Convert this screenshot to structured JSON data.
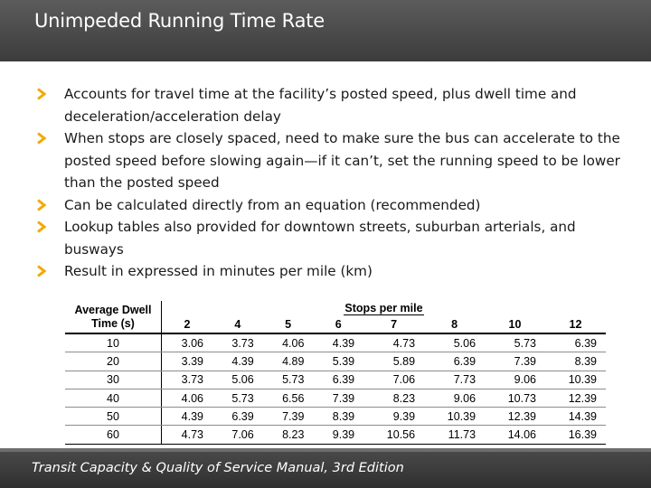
{
  "header": {
    "title": "Unimpeded Running Time Rate"
  },
  "bullets": [
    "Accounts for travel time at the facility’s posted speed, plus dwell time and deceleration/acceleration delay",
    "When stops are closely spaced, need to make sure the bus can accelerate to the posted speed before slowing again—if it can’t, set the running speed to be lower than the posted speed",
    "Can be calculated directly from an equation (recommended)",
    "Lookup tables also provided for downtown streets, suburban arterials, and busways",
    "Result in expressed in minutes per mile (km)"
  ],
  "bullet_icon": "chevron-right-icon",
  "accent_color": "#f2a900",
  "table": {
    "row_header": "Average Dwell Time (s)",
    "group_header": "Stops per mile",
    "columns": [
      "2",
      "4",
      "5",
      "6",
      "7",
      "8",
      "10",
      "12"
    ],
    "rows": [
      {
        "dwell": "10",
        "values": [
          "3.06",
          "3.73",
          "4.06",
          "4.39",
          "4.73",
          "5.06",
          "5.73",
          "6.39"
        ]
      },
      {
        "dwell": "20",
        "values": [
          "3.39",
          "4.39",
          "4.89",
          "5.39",
          "5.89",
          "6.39",
          "7.39",
          "8.39"
        ]
      },
      {
        "dwell": "30",
        "values": [
          "3.73",
          "5.06",
          "5.73",
          "6.39",
          "7.06",
          "7.73",
          "9.06",
          "10.39"
        ]
      },
      {
        "dwell": "40",
        "values": [
          "4.06",
          "5.73",
          "6.56",
          "7.39",
          "8.23",
          "9.06",
          "10.73",
          "12.39"
        ]
      },
      {
        "dwell": "50",
        "values": [
          "4.39",
          "6.39",
          "7.39",
          "8.39",
          "9.39",
          "10.39",
          "12.39",
          "14.39"
        ]
      },
      {
        "dwell": "60",
        "values": [
          "4.73",
          "7.06",
          "8.23",
          "9.39",
          "10.56",
          "11.73",
          "14.06",
          "16.39"
        ]
      }
    ]
  },
  "footer": {
    "source": "Transit Capacity & Quality of Service Manual, 3rd Edition"
  }
}
